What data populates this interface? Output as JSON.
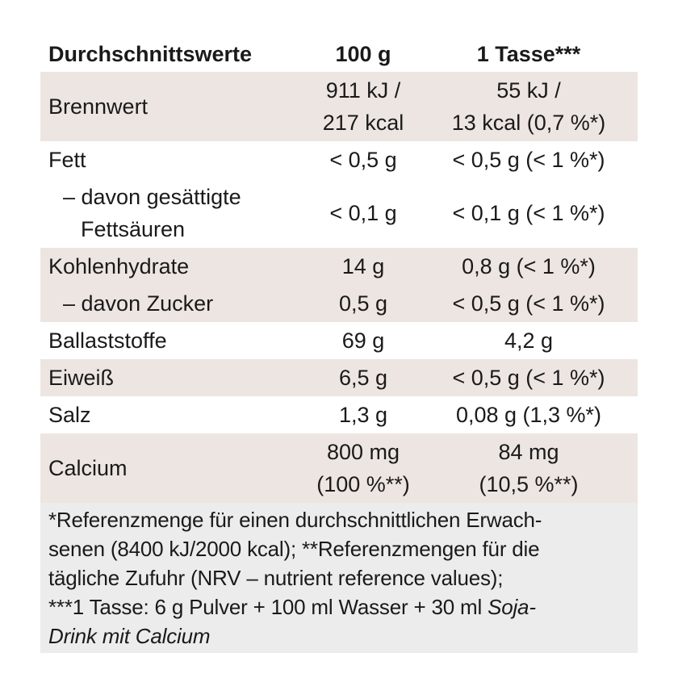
{
  "table": {
    "header": [
      "Durchschnittswerte",
      "100 g",
      "1 Tasse***"
    ],
    "rows": [
      {
        "label": [
          "Brennwert"
        ],
        "c1": [
          "911 kJ /",
          "217 kcal"
        ],
        "c2": [
          "55 kJ /",
          "13 kcal (0,7 %*)"
        ],
        "shaded": true,
        "sub": false
      },
      {
        "label": [
          "Fett"
        ],
        "c1": [
          "< 0,5 g"
        ],
        "c2": [
          "< 0,5 g (< 1 %*)"
        ],
        "shaded": false,
        "sub": false
      },
      {
        "label": [
          "– davon gesättigte",
          "Fettsäuren"
        ],
        "c1": [
          "< 0,1 g"
        ],
        "c2": [
          "< 0,1 g (< 1 %*)"
        ],
        "shaded": false,
        "sub": true
      },
      {
        "label": [
          "Kohlenhydrate"
        ],
        "c1": [
          "14 g"
        ],
        "c2": [
          "0,8 g (< 1 %*)"
        ],
        "shaded": true,
        "sub": false
      },
      {
        "label": [
          "– davon Zucker"
        ],
        "c1": [
          "0,5 g"
        ],
        "c2": [
          "< 0,5 g (< 1 %*)"
        ],
        "shaded": true,
        "sub": true
      },
      {
        "label": [
          "Ballaststoffe"
        ],
        "c1": [
          "69 g"
        ],
        "c2": [
          "4,2 g"
        ],
        "shaded": false,
        "sub": false
      },
      {
        "label": [
          "Eiweiß"
        ],
        "c1": [
          "6,5 g"
        ],
        "c2": [
          "< 0,5 g (< 1 %*)"
        ],
        "shaded": true,
        "sub": false
      },
      {
        "label": [
          "Salz"
        ],
        "c1": [
          "1,3 g"
        ],
        "c2": [
          "0,08 g (1,3 %*)"
        ],
        "shaded": false,
        "sub": false
      },
      {
        "label": [
          "Calcium"
        ],
        "c1": [
          "800 mg",
          "(100 %**)"
        ],
        "c2": [
          "84 mg",
          "(10,5 %**)"
        ],
        "shaded": true,
        "sub": false
      }
    ],
    "footnote": [
      [
        {
          "text": "*Referenzmenge für einen durchschnittlichen Erwach-",
          "italic": false
        }
      ],
      [
        {
          "text": "senen (8400 kJ/2000 kcal); **Referenzmengen für die",
          "italic": false
        }
      ],
      [
        {
          "text": "tägliche Zufuhr (NRV – nutrient reference values);",
          "italic": false
        }
      ],
      [
        {
          "text": "***1 Tasse: 6 g Pulver + 100 ml Wasser + 30 ml ",
          "italic": false
        },
        {
          "text": "Soja-",
          "italic": true
        }
      ],
      [
        {
          "text": "Drink mit Calcium",
          "italic": true
        }
      ]
    ]
  }
}
